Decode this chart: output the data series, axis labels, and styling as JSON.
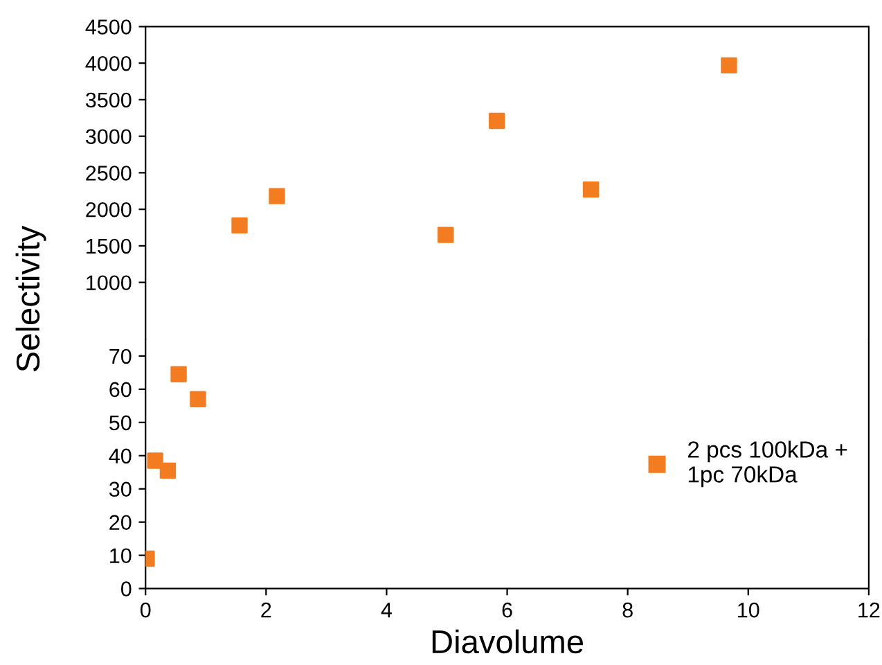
{
  "chart_data": [
    {
      "type": "scatter",
      "x": [
        1.56,
        2.18,
        4.98,
        5.83,
        7.39,
        9.68
      ],
      "series": [
        {
          "color": "#f47c20",
          "values": [
            1780,
            2180,
            1650,
            3210,
            2270,
            3970
          ]
        }
      ],
      "xlim": [
        0,
        12
      ],
      "ylim": [
        220,
        4500
      ],
      "yticks": [
        1000,
        1500,
        2000,
        2500,
        3000,
        3500,
        4000,
        4500
      ],
      "tick_labels": "y",
      "marker": "square",
      "grid": false,
      "legend": false
    },
    {
      "type": "scatter",
      "x": [
        0.02,
        0.16,
        0.37,
        0.55,
        0.87
      ],
      "series": [
        {
          "name": "2 pcs 100kDa +\n1pc 70kDa",
          "color": "#f47c20",
          "values": [
            9,
            38.5,
            35.5,
            64.5,
            57
          ]
        }
      ],
      "xlim": [
        0,
        12
      ],
      "ylim": [
        0,
        75
      ],
      "xticks": [
        0,
        2,
        4,
        6,
        8,
        10,
        12
      ],
      "yticks": [
        0,
        10,
        20,
        30,
        40,
        50,
        60,
        70
      ],
      "xlabel": "Diavolume",
      "ylabel": "Selectivity",
      "marker": "square",
      "grid": false,
      "legend": "center right"
    }
  ]
}
